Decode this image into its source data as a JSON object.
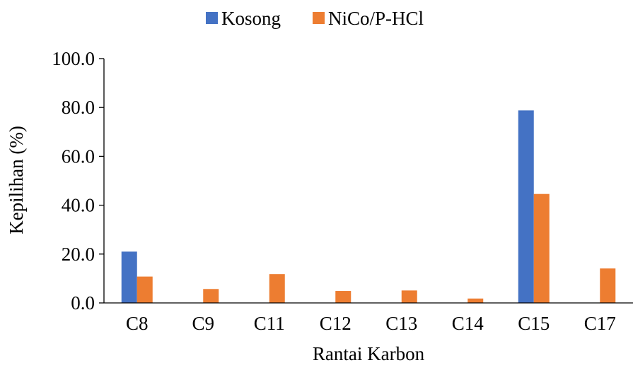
{
  "chart_data": {
    "type": "bar",
    "title": "",
    "xlabel": "Rantai Karbon",
    "ylabel": "Kepilihan (%)",
    "categories": [
      "C8",
      "C9",
      "C11",
      "C12",
      "C13",
      "C14",
      "C15",
      "C17"
    ],
    "series": [
      {
        "name": "Kosong",
        "color": "#4472C4",
        "values": [
          21.0,
          0,
          0,
          0,
          0,
          0,
          78.8,
          0
        ]
      },
      {
        "name": "NiCo/P-HCl",
        "color": "#ED7D31",
        "values": [
          10.8,
          5.7,
          11.8,
          4.9,
          5.1,
          1.8,
          44.6,
          14.1
        ]
      }
    ],
    "ylim": [
      0,
      100
    ],
    "yticks": [
      "0.0",
      "20.0",
      "40.0",
      "60.0",
      "80.0",
      "100.0"
    ],
    "grid": false,
    "legend_position": "top-center"
  }
}
